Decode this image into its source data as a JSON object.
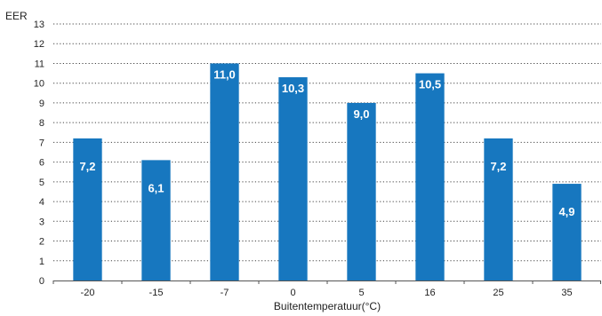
{
  "chart_data": {
    "type": "bar",
    "ylabel": "EER",
    "xlabel": "Buitentemperatuur(°C)",
    "categories": [
      "-20",
      "-15",
      "-7",
      "0",
      "5",
      "16",
      "25",
      "35"
    ],
    "values": [
      7.2,
      6.1,
      11.0,
      10.3,
      9.0,
      10.5,
      7.2,
      4.9
    ],
    "value_labels": [
      "7,2",
      "6,1",
      "11,0",
      "10,3",
      "9,0",
      "10,5",
      "7,2",
      "4,9"
    ],
    "ylim": [
      0,
      13
    ],
    "yticks": [
      0,
      1,
      2,
      3,
      4,
      5,
      6,
      7,
      8,
      9,
      10,
      11,
      12,
      13
    ],
    "grid": true,
    "legend": "none",
    "bar_color": "#1777bf"
  }
}
